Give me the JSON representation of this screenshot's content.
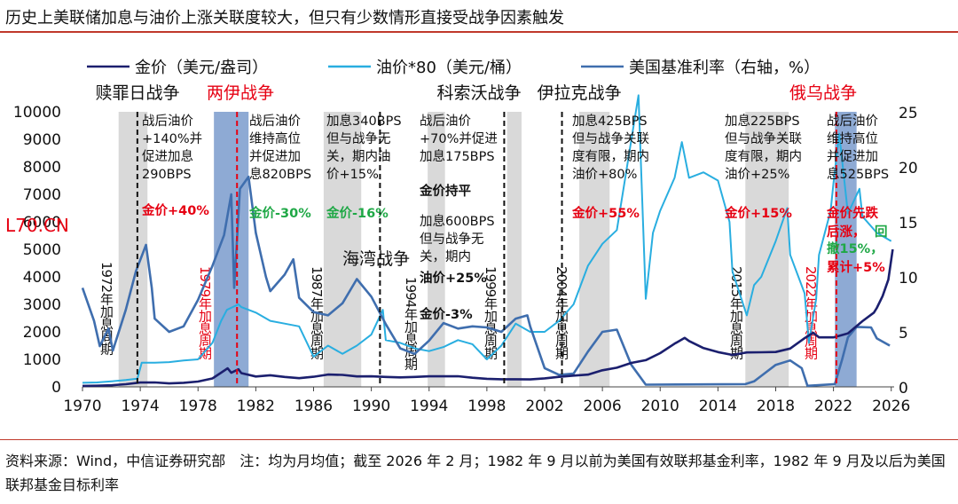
{
  "title": "历史上美联储加息与油价上涨关联度较大，但只有少数情形直接受战争因素触发",
  "footer": "资料来源：Wind，中信证券研究部　注：均为月均值；截至 2026 年 2 月；1982 年 9 月以前为美国有效联邦基金利率，1982 年 9 月及以后为美国联邦基金目标利率",
  "watermark": "L70.CN",
  "colors": {
    "gold": "#1b1f6e",
    "oil": "#29aee0",
    "rate": "#3f6eae",
    "hike_band": "#d9d9d9",
    "war_band": "#8eaad4",
    "war_red": "#e60012",
    "green": "#1fa846"
  },
  "chart_data": {
    "type": "line",
    "x_axis": {
      "range": [
        1970,
        2026.2
      ],
      "ticks": [
        "1970",
        "1974",
        "1978",
        "1982",
        "1986",
        "1990",
        "1994",
        "1998",
        "2002",
        "2006",
        "2010",
        "2014",
        "2018",
        "2022",
        "2026"
      ]
    },
    "y_left": {
      "range": [
        0,
        10000
      ],
      "ticks": [
        "0",
        "1000",
        "2000",
        "3000",
        "4000",
        "5000",
        "6000",
        "7000",
        "8000",
        "9000",
        "10000"
      ]
    },
    "y_right": {
      "range": [
        0,
        25
      ],
      "ticks": [
        "0",
        "5",
        "10",
        "15",
        "20",
        "25"
      ]
    },
    "legend": [
      "金价（美元/盎司）",
      "油价*80（美元/桶）",
      "美国基准利率（右轴，%）"
    ],
    "series": [
      {
        "name": "金价（美元/盎司）",
        "axis": "left",
        "color": "#1b1f6e",
        "points": [
          [
            1970,
            36
          ],
          [
            1971,
            41
          ],
          [
            1972,
            58
          ],
          [
            1973,
            97
          ],
          [
            1974,
            159
          ],
          [
            1975,
            161
          ],
          [
            1976,
            125
          ],
          [
            1977,
            148
          ],
          [
            1978,
            193
          ],
          [
            1979,
            306
          ],
          [
            1980.05,
            675
          ],
          [
            1980.3,
            513
          ],
          [
            1980.8,
            640
          ],
          [
            1981,
            500
          ],
          [
            1982,
            376
          ],
          [
            1983,
            424
          ],
          [
            1984,
            361
          ],
          [
            1985,
            317
          ],
          [
            1986,
            368
          ],
          [
            1987,
            447
          ],
          [
            1988,
            437
          ],
          [
            1989,
            381
          ],
          [
            1990,
            384
          ],
          [
            1991,
            362
          ],
          [
            1992,
            344
          ],
          [
            1993,
            360
          ],
          [
            1994,
            384
          ],
          [
            1995,
            384
          ],
          [
            1996,
            388
          ],
          [
            1997,
            331
          ],
          [
            1998,
            294
          ],
          [
            1999,
            279
          ],
          [
            2000,
            279
          ],
          [
            2001,
            271
          ],
          [
            2002,
            310
          ],
          [
            2003,
            363
          ],
          [
            2004,
            409
          ],
          [
            2005,
            445
          ],
          [
            2006,
            604
          ],
          [
            2007,
            696
          ],
          [
            2008,
            872
          ],
          [
            2009,
            972
          ],
          [
            2010,
            1225
          ],
          [
            2011,
            1571
          ],
          [
            2011.7,
            1780
          ],
          [
            2012,
            1669
          ],
          [
            2013,
            1411
          ],
          [
            2014,
            1266
          ],
          [
            2015,
            1160
          ],
          [
            2016,
            1251
          ],
          [
            2017,
            1257
          ],
          [
            2018,
            1268
          ],
          [
            2019,
            1393
          ],
          [
            2020,
            1770
          ],
          [
            2020.6,
            1968
          ],
          [
            2021,
            1799
          ],
          [
            2022,
            1800
          ],
          [
            2023,
            1941
          ],
          [
            2024,
            2386
          ],
          [
            2024.8,
            2700
          ],
          [
            2025,
            2870
          ],
          [
            2025.4,
            3300
          ],
          [
            2025.8,
            3900
          ],
          [
            2026.1,
            5000
          ]
        ]
      },
      {
        "name": "油价*80（美元/桶）",
        "axis": "left",
        "color": "#29aee0",
        "points": [
          [
            1970,
            150
          ],
          [
            1971,
            160
          ],
          [
            1972,
            200
          ],
          [
            1973,
            250
          ],
          [
            1973.8,
            300
          ],
          [
            1974.1,
            880
          ],
          [
            1975,
            880
          ],
          [
            1976,
            900
          ],
          [
            1977,
            960
          ],
          [
            1978,
            1000
          ],
          [
            1979,
            1600
          ],
          [
            1979.6,
            2400
          ],
          [
            1980,
            2800
          ],
          [
            1980.8,
            3000
          ],
          [
            1981,
            2900
          ],
          [
            1982,
            2700
          ],
          [
            1983,
            2400
          ],
          [
            1984,
            2300
          ],
          [
            1985,
            2200
          ],
          [
            1986,
            1100
          ],
          [
            1987,
            1500
          ],
          [
            1988,
            1200
          ],
          [
            1989,
            1500
          ],
          [
            1990,
            1900
          ],
          [
            1990.8,
            2800
          ],
          [
            1991,
            1700
          ],
          [
            1992,
            1600
          ],
          [
            1993,
            1400
          ],
          [
            1994,
            1300
          ],
          [
            1995,
            1450
          ],
          [
            1996,
            1700
          ],
          [
            1997,
            1550
          ],
          [
            1998,
            1000
          ],
          [
            1999,
            1500
          ],
          [
            2000,
            2300
          ],
          [
            2001,
            2000
          ],
          [
            2002,
            2000
          ],
          [
            2003,
            2400
          ],
          [
            2004,
            3000
          ],
          [
            2005,
            4400
          ],
          [
            2006,
            5200
          ],
          [
            2007,
            5700
          ],
          [
            2008.5,
            10600
          ],
          [
            2009,
            3200
          ],
          [
            2009.5,
            5600
          ],
          [
            2010,
            6400
          ],
          [
            2011,
            7600
          ],
          [
            2011.5,
            8900
          ],
          [
            2012,
            7600
          ],
          [
            2013,
            7800
          ],
          [
            2014,
            7500
          ],
          [
            2014.8,
            6000
          ],
          [
            2015,
            4200
          ],
          [
            2016,
            2600
          ],
          [
            2016.5,
            3700
          ],
          [
            2017,
            4000
          ],
          [
            2018,
            5300
          ],
          [
            2018.8,
            6500
          ],
          [
            2019,
            4800
          ],
          [
            2020,
            3400
          ],
          [
            2020.3,
            1600
          ],
          [
            2020.8,
            3200
          ],
          [
            2021,
            4800
          ],
          [
            2021.8,
            6400
          ],
          [
            2022,
            7400
          ],
          [
            2022.4,
            9200
          ],
          [
            2023,
            6300
          ],
          [
            2023.8,
            7200
          ],
          [
            2024,
            6200
          ],
          [
            2025,
            5600
          ],
          [
            2026,
            5300
          ]
        ]
      },
      {
        "name": "美国基准利率（右轴，%）",
        "axis": "right",
        "color": "#3f6eae",
        "points": [
          [
            1970,
            9
          ],
          [
            1970.8,
            6
          ],
          [
            1971.2,
            3.7
          ],
          [
            1971.8,
            5.3
          ],
          [
            1972.1,
            3.3
          ],
          [
            1973,
            7
          ],
          [
            1973.7,
            10.5
          ],
          [
            1974.4,
            12.9
          ],
          [
            1974.8,
            9
          ],
          [
            1975,
            6.2
          ],
          [
            1976,
            5
          ],
          [
            1977,
            5.5
          ],
          [
            1978,
            7.9
          ],
          [
            1979,
            11
          ],
          [
            1979.8,
            13.8
          ],
          [
            1980.3,
            17.5
          ],
          [
            1980.5,
            9
          ],
          [
            1980.9,
            18
          ],
          [
            1981.5,
            19.1
          ],
          [
            1982,
            14
          ],
          [
            1982.7,
            10
          ],
          [
            1983,
            8.7
          ],
          [
            1984,
            10.2
          ],
          [
            1984.6,
            11.6
          ],
          [
            1985,
            8.1
          ],
          [
            1986,
            6.8
          ],
          [
            1987,
            6.5
          ],
          [
            1988,
            7.6
          ],
          [
            1989,
            9.8
          ],
          [
            1990,
            8.2
          ],
          [
            1991,
            5.7
          ],
          [
            1992,
            3.5
          ],
          [
            1993,
            3
          ],
          [
            1994,
            4.2
          ],
          [
            1995,
            5.8
          ],
          [
            1996,
            5.3
          ],
          [
            1997,
            5.5
          ],
          [
            1998,
            5.4
          ],
          [
            1999,
            5
          ],
          [
            2000,
            6.2
          ],
          [
            2000.8,
            6.5
          ],
          [
            2001,
            5.5
          ],
          [
            2002,
            1.7
          ],
          [
            2003,
            1.1
          ],
          [
            2004,
            1.2
          ],
          [
            2005,
            3.2
          ],
          [
            2006,
            5
          ],
          [
            2007,
            5.2
          ],
          [
            2008,
            2
          ],
          [
            2009,
            0.2
          ],
          [
            2015.9,
            0.25
          ],
          [
            2016.5,
            0.5
          ],
          [
            2017,
            1
          ],
          [
            2018,
            2
          ],
          [
            2019,
            2.4
          ],
          [
            2019.8,
            1.7
          ],
          [
            2020.2,
            0.1
          ],
          [
            2022.1,
            0.25
          ],
          [
            2022.6,
            2.5
          ],
          [
            2023,
            4.5
          ],
          [
            2023.6,
            5.45
          ],
          [
            2024.6,
            5.4
          ],
          [
            2025,
            4.4
          ],
          [
            2025.9,
            3.75
          ]
        ]
      }
    ],
    "hike_cycles": [
      {
        "start": 1972.5,
        "end": 1974.5,
        "label": "1972年加息周期"
      },
      {
        "start": 1986.7,
        "end": 1989.3,
        "label": "1987年加息周期"
      },
      {
        "start": 1993.9,
        "end": 1995.1,
        "label": "1994年加息周期"
      },
      {
        "start": 1999.4,
        "end": 2000.4,
        "label": "1999年加息周期"
      },
      {
        "start": 2004.4,
        "end": 2006.5,
        "label": "2004年加息周期"
      },
      {
        "start": 2015.9,
        "end": 2018.9,
        "label": "2015年加息周期"
      },
      {
        "start": 2022.1,
        "end": 2023.6,
        "label": "2022年加息周期"
      }
    ],
    "war_bands": [
      {
        "start": 1979.1,
        "end": 1981.5,
        "label": "1979年加息周期"
      },
      {
        "start": 2022.1,
        "end": 2023.6
      }
    ],
    "war_lines": [
      {
        "x": 1973.8,
        "color": "black",
        "label": "赎罪日战争"
      },
      {
        "x": 1980.7,
        "color": "red",
        "label": "两伊战争"
      },
      {
        "x": 1990.6,
        "color": "black",
        "label": "海湾战争"
      },
      {
        "x": 1999.2,
        "color": "black",
        "label": "科索沃战争"
      },
      {
        "x": 2003.2,
        "color": "black",
        "label": "伊拉克战争"
      },
      {
        "x": 2022.2,
        "color": "red",
        "label": "俄乌战争"
      }
    ],
    "annotations": [
      {
        "id": "a1",
        "lines": [
          "战后油价",
          "+140%并",
          "促进加息",
          "290BPS"
        ]
      },
      {
        "id": "a2",
        "lines": [
          "战后油价",
          "维持高位",
          "并促进加",
          "息820BPS"
        ]
      },
      {
        "id": "a3",
        "lines": [
          "加息340BPS",
          "但与战争无",
          "关，期内油",
          "价+15%"
        ]
      },
      {
        "id": "a4",
        "lines": [
          "战后油价",
          "+70%并促进",
          "加息175BPS"
        ]
      },
      {
        "id": "a5",
        "lines": [
          "金价持平"
        ]
      },
      {
        "id": "a6",
        "lines": [
          "加息600BPS",
          "但与战争无",
          "关，期内"
        ]
      },
      {
        "id": "a7",
        "lines": [
          "油价+25%"
        ]
      },
      {
        "id": "a8",
        "lines": [
          "金价-3%"
        ]
      },
      {
        "id": "a9",
        "lines": [
          "加息425BPS",
          "但与战争关联",
          "度有限，期内",
          "油价+80%"
        ]
      },
      {
        "id": "a10",
        "lines": [
          "加息225BPS",
          "但与战争关联",
          "度有限，期内",
          "油价+25%"
        ]
      },
      {
        "id": "a11",
        "lines": [
          "战后油价",
          "维持高位",
          "并促进加",
          "息525BPS"
        ]
      },
      {
        "id": "g1",
        "text": "金价+40%"
      },
      {
        "id": "g2",
        "text": "金价-30%"
      },
      {
        "id": "g3",
        "text": "金价-16%"
      },
      {
        "id": "g4",
        "text": "金价+55%"
      },
      {
        "id": "g5",
        "text": "金价+15%"
      },
      {
        "id": "g6a",
        "text": "金价先跌"
      },
      {
        "id": "g6b",
        "text": "后涨，"
      },
      {
        "id": "g6c",
        "text": "回"
      },
      {
        "id": "g6d",
        "text": "撤15%，"
      },
      {
        "id": "g6e",
        "text": "累计+5%"
      }
    ]
  }
}
